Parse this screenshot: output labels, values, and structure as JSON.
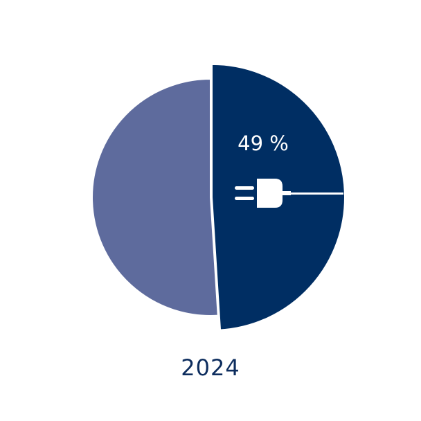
{
  "chart_data": {
    "type": "pie",
    "title": "",
    "categories": [
      "2024"
    ],
    "slices": [
      {
        "name": "",
        "value": 49,
        "label": "49 %",
        "color": "#002e63",
        "exploded": true,
        "icon": "electric-plug-icon"
      },
      {
        "name": "",
        "value": 51,
        "label": "",
        "color": "#5e6b9d",
        "exploded": false
      }
    ],
    "start_angle_deg": 0,
    "direction": "clockwise",
    "legend": "none",
    "year_label": "2024"
  }
}
